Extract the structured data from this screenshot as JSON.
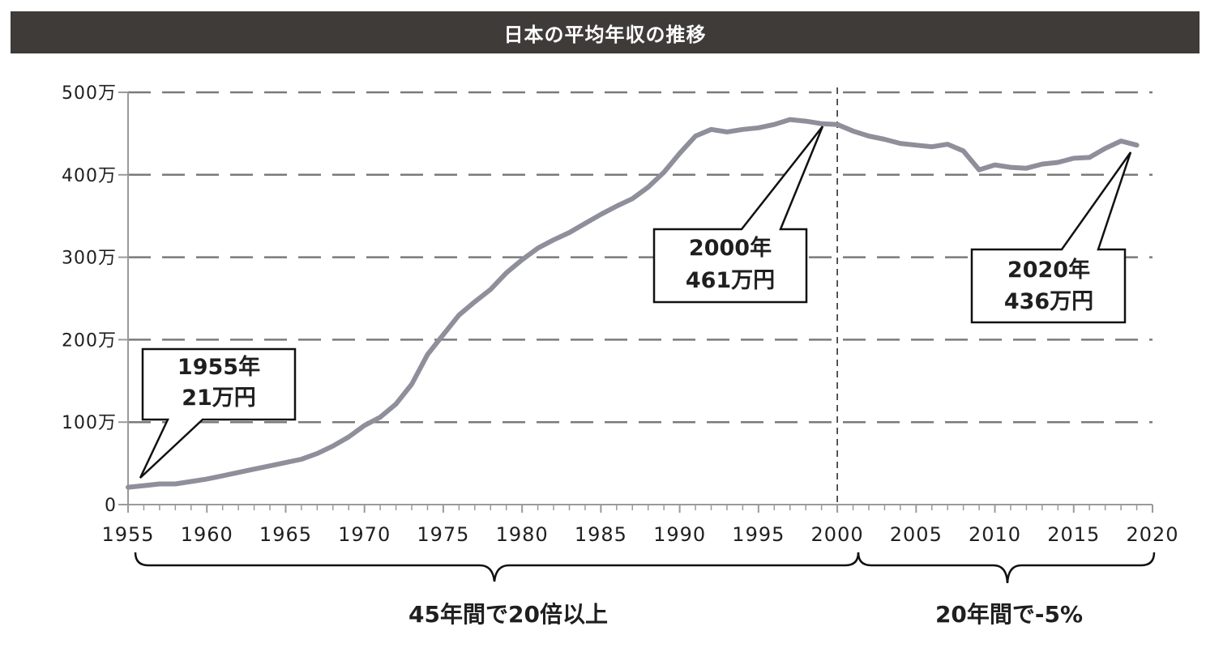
{
  "chart_data": {
    "type": "line",
    "title": "日本の平均年収の推移",
    "xlabel": "",
    "ylabel": "",
    "xlim": [
      1955,
      2020
    ],
    "ylim": [
      0,
      500
    ],
    "y_tick_labels": [
      "0",
      "100万",
      "200万",
      "300万",
      "400万",
      "500万"
    ],
    "x_tick_labels": [
      "1955",
      "1960",
      "1965",
      "1970",
      "1975",
      "1980",
      "1985",
      "1990",
      "1995",
      "2000",
      "2005",
      "2010",
      "2015",
      "2020"
    ],
    "grid": "horizontal dashed",
    "line_color": "#8e8f9a",
    "x": [
      1955,
      1956,
      1957,
      1958,
      1959,
      1960,
      1961,
      1962,
      1963,
      1964,
      1965,
      1966,
      1967,
      1968,
      1969,
      1970,
      1971,
      1972,
      1973,
      1974,
      1975,
      1976,
      1977,
      1978,
      1979,
      1980,
      1981,
      1982,
      1983,
      1984,
      1985,
      1986,
      1987,
      1988,
      1989,
      1990,
      1991,
      1992,
      1993,
      1994,
      1995,
      1996,
      1997,
      1998,
      1999,
      2000,
      2001,
      2002,
      2003,
      2004,
      2005,
      2006,
      2007,
      2008,
      2009,
      2010,
      2011,
      2012,
      2013,
      2014,
      2015,
      2016,
      2017,
      2018,
      2019
    ],
    "values": [
      21,
      23,
      25,
      25,
      28,
      31,
      35,
      39,
      43,
      47,
      51,
      55,
      62,
      71,
      82,
      96,
      106,
      122,
      146,
      182,
      206,
      230,
      246,
      261,
      281,
      297,
      311,
      321,
      330,
      341,
      352,
      362,
      371,
      385,
      403,
      426,
      447,
      455,
      452,
      455,
      457,
      461,
      467,
      465,
      462,
      461,
      453,
      447,
      443,
      438,
      436,
      434,
      437,
      429,
      406,
      412,
      409,
      408,
      413,
      415,
      420,
      421,
      432,
      441,
      436
    ],
    "annotations": [
      {
        "id": "ann1955",
        "line1": "1955年",
        "line2": "21万円"
      },
      {
        "id": "ann2000",
        "line1": "2000年",
        "line2": "461万円"
      },
      {
        "id": "ann2020",
        "line1": "2020年",
        "line2": "436万円"
      }
    ],
    "vertical_marker_year": 2000,
    "braces": [
      {
        "label": "45年間で20倍以上"
      },
      {
        "label": "20年間で-5%"
      }
    ]
  }
}
